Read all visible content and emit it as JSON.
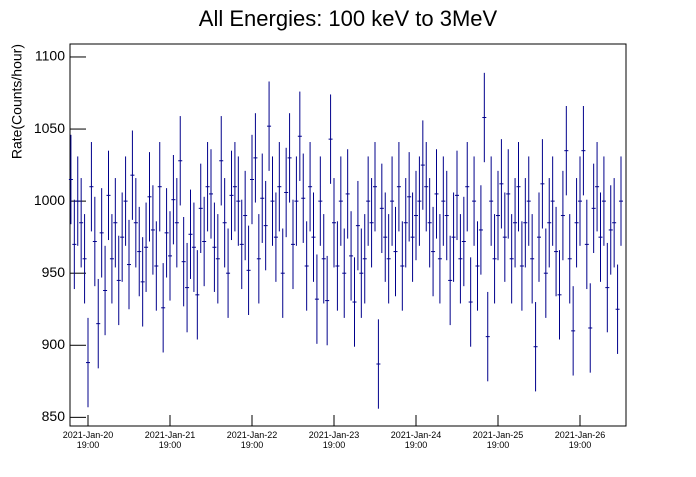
{
  "chart_data": {
    "type": "errorbar",
    "title": "All Energies:  100 keV to 3MeV",
    "y_label": "Rate(Counts/hour)",
    "color": "#00008b",
    "error": 31,
    "xlim": [
      "2021-01-20T13:44",
      "2021-01-27T08:28"
    ],
    "xticks": [
      {
        "value": "2021-01-20T19:00",
        "label": "2021-Jan-20 19:00"
      },
      {
        "value": "2021-01-21T19:00",
        "label": "2021-Jan-21 19:00"
      },
      {
        "value": "2021-01-22T19:00",
        "label": "2021-Jan-22 19:00"
      },
      {
        "value": "2021-01-23T19:00",
        "label": "2021-Jan-23 19:00"
      },
      {
        "value": "2021-01-24T19:00",
        "label": "2021-Jan-24 19:00"
      },
      {
        "value": "2021-01-25T19:00",
        "label": "2021-Jan-25 19:00"
      },
      {
        "value": "2021-01-26T19:00",
        "label": "2021-Jan-26 19:00"
      }
    ],
    "ylim": [
      844,
      1109
    ],
    "yticks": [
      850,
      900,
      950,
      1000,
      1050,
      1100
    ],
    "x": [
      "2021-01-20T14:00",
      "2021-01-20T15:00",
      "2021-01-20T16:00",
      "2021-01-20T17:00",
      "2021-01-20T18:00",
      "2021-01-20T19:00",
      "2021-01-20T20:00",
      "2021-01-20T21:00",
      "2021-01-20T22:00",
      "2021-01-20T23:00",
      "2021-01-21T00:00",
      "2021-01-21T01:00",
      "2021-01-21T02:00",
      "2021-01-21T03:00",
      "2021-01-21T04:00",
      "2021-01-21T05:00",
      "2021-01-21T06:00",
      "2021-01-21T07:00",
      "2021-01-21T08:00",
      "2021-01-21T09:00",
      "2021-01-21T10:00",
      "2021-01-21T11:00",
      "2021-01-21T12:00",
      "2021-01-21T13:00",
      "2021-01-21T14:00",
      "2021-01-21T15:00",
      "2021-01-21T16:00",
      "2021-01-21T17:00",
      "2021-01-21T18:00",
      "2021-01-21T19:00",
      "2021-01-21T20:00",
      "2021-01-21T21:00",
      "2021-01-21T22:00",
      "2021-01-21T23:00",
      "2021-01-22T00:00",
      "2021-01-22T01:00",
      "2021-01-22T02:00",
      "2021-01-22T03:00",
      "2021-01-22T04:00",
      "2021-01-22T05:00",
      "2021-01-22T06:00",
      "2021-01-22T07:00",
      "2021-01-22T08:00",
      "2021-01-22T09:00",
      "2021-01-22T10:00",
      "2021-01-22T11:00",
      "2021-01-22T12:00",
      "2021-01-22T13:00",
      "2021-01-22T14:00",
      "2021-01-22T15:00",
      "2021-01-22T16:00",
      "2021-01-22T17:00",
      "2021-01-22T18:00",
      "2021-01-22T19:00",
      "2021-01-22T20:00",
      "2021-01-22T21:00",
      "2021-01-22T22:00",
      "2021-01-22T23:00",
      "2021-01-23T00:00",
      "2021-01-23T01:00",
      "2021-01-23T02:00",
      "2021-01-23T03:00",
      "2021-01-23T04:00",
      "2021-01-23T05:00",
      "2021-01-23T06:00",
      "2021-01-23T07:00",
      "2021-01-23T08:00",
      "2021-01-23T09:00",
      "2021-01-23T10:00",
      "2021-01-23T11:00",
      "2021-01-23T12:00",
      "2021-01-23T13:00",
      "2021-01-23T14:00",
      "2021-01-23T15:00",
      "2021-01-23T16:00",
      "2021-01-23T17:00",
      "2021-01-23T18:00",
      "2021-01-23T19:00",
      "2021-01-23T20:00",
      "2021-01-23T21:00",
      "2021-01-23T22:00",
      "2021-01-23T23:00",
      "2021-01-24T00:00",
      "2021-01-24T01:00",
      "2021-01-24T02:00",
      "2021-01-24T03:00",
      "2021-01-24T04:00",
      "2021-01-24T05:00",
      "2021-01-24T06:00",
      "2021-01-24T07:00",
      "2021-01-24T08:00",
      "2021-01-24T09:00",
      "2021-01-24T10:00",
      "2021-01-24T11:00",
      "2021-01-24T12:00",
      "2021-01-24T13:00",
      "2021-01-24T14:00",
      "2021-01-24T15:00",
      "2021-01-24T16:00",
      "2021-01-24T17:00",
      "2021-01-24T18:00",
      "2021-01-24T19:00",
      "2021-01-24T20:00",
      "2021-01-24T21:00",
      "2021-01-24T22:00",
      "2021-01-24T23:00",
      "2021-01-25T00:00",
      "2021-01-25T01:00",
      "2021-01-25T02:00",
      "2021-01-25T03:00",
      "2021-01-25T04:00",
      "2021-01-25T05:00",
      "2021-01-25T06:00",
      "2021-01-25T07:00",
      "2021-01-25T08:00",
      "2021-01-25T09:00",
      "2021-01-25T10:00",
      "2021-01-25T11:00",
      "2021-01-25T12:00",
      "2021-01-25T13:00",
      "2021-01-25T14:00",
      "2021-01-25T15:00",
      "2021-01-25T16:00",
      "2021-01-25T17:00",
      "2021-01-25T18:00",
      "2021-01-25T19:00",
      "2021-01-25T20:00",
      "2021-01-25T21:00",
      "2021-01-25T22:00",
      "2021-01-25T23:00",
      "2021-01-26T00:00",
      "2021-01-26T01:00",
      "2021-01-26T02:00",
      "2021-01-26T03:00",
      "2021-01-26T04:00",
      "2021-01-26T05:00",
      "2021-01-26T06:00",
      "2021-01-26T07:00",
      "2021-01-26T08:00",
      "2021-01-26T09:00",
      "2021-01-26T10:00",
      "2021-01-26T11:00",
      "2021-01-26T12:00",
      "2021-01-26T13:00",
      "2021-01-26T14:00",
      "2021-01-26T15:00",
      "2021-01-26T16:00",
      "2021-01-26T17:00",
      "2021-01-26T18:00",
      "2021-01-26T19:00",
      "2021-01-26T20:00",
      "2021-01-26T21:00",
      "2021-01-26T22:00",
      "2021-01-26T23:00",
      "2021-01-27T00:00",
      "2021-01-27T01:00",
      "2021-01-27T02:00",
      "2021-01-27T03:00",
      "2021-01-27T04:00",
      "2021-01-27T05:00",
      "2021-01-27T06:00",
      "2021-01-27T07:00"
    ],
    "values": [
      1015,
      970,
      1000,
      985,
      960,
      888,
      1010,
      972,
      915,
      978,
      938,
      1004,
      960,
      985,
      945,
      975,
      1000,
      956,
      1018,
      985,
      965,
      944,
      968,
      1003,
      980,
      955,
      1010,
      926,
      978,
      962,
      1001,
      985,
      1028,
      958,
      940,
      977,
      968,
      935,
      995,
      972,
      1010,
      1005,
      968,
      960,
      1028,
      985,
      950,
      1004,
      1010,
      1000,
      970,
      990,
      952,
      1015,
      1030,
      960,
      1002,
      983,
      1052,
      1000,
      975,
      1010,
      950,
      1006,
      1030,
      970,
      1000,
      1045,
      1002,
      955,
      1010,
      975,
      932,
      1000,
      960,
      931,
      1043,
      985,
      955,
      1000,
      950,
      1005,
      962,
      930,
      983,
      950,
      960,
      1000,
      985,
      1010,
      887,
      995,
      975,
      960,
      1000,
      965,
      1010,
      955,
      985,
      1003,
      975,
      990,
      1000,
      1025,
      1010,
      985,
      965,
      1005,
      960,
      1000,
      990,
      945,
      975,
      1004,
      960,
      972,
      1010,
      930,
      1000,
      955,
      980,
      1058,
      906,
      1000,
      960,
      990,
      1012,
      975,
      1005,
      960,
      985,
      1010,
      955,
      985,
      1000,
      960,
      899,
      975,
      1012,
      950,
      985,
      1000,
      965,
      935,
      990,
      1035,
      960,
      910,
      985,
      1000,
      1035,
      970,
      912,
      995,
      1010,
      975,
      1000,
      940,
      980,
      985,
      925,
      1000
    ]
  }
}
